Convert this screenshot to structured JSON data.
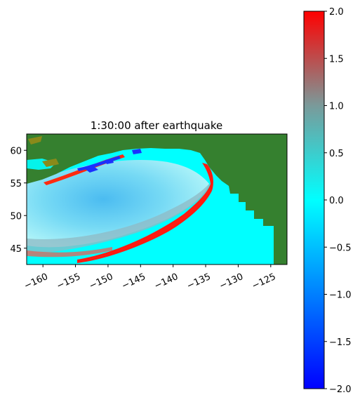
{
  "chart_data": {
    "type": "heatmap",
    "title": "1:30:00 after earthquake",
    "xlabel": "",
    "ylabel": "",
    "x_ticks": [
      "−160",
      "−155",
      "−150",
      "−145",
      "−140",
      "−135",
      "−130",
      "−125"
    ],
    "x_tick_values": [
      -160,
      -155,
      -150,
      -145,
      -140,
      -135,
      -130,
      -125
    ],
    "y_ticks": [
      "45",
      "50",
      "55",
      "60"
    ],
    "y_tick_values": [
      45,
      50,
      55,
      60
    ],
    "xlim": [
      -162.5,
      -122.5
    ],
    "ylim": [
      42.5,
      62.5
    ],
    "grid": false,
    "colorbar": {
      "min": -2.0,
      "max": 2.0,
      "ticks": [
        "2.0",
        "1.5",
        "1.0",
        "0.5",
        "0.0",
        "−0.5",
        "−1.0",
        "−1.5",
        "−2.0"
      ],
      "tick_values": [
        2.0,
        1.5,
        1.0,
        0.5,
        0.0,
        -0.5,
        -1.0,
        -1.5,
        -2.0
      ],
      "colors": [
        "#0000ff",
        "#00ffff",
        "#888888",
        "#ff0000"
      ]
    },
    "land_color": "#35802f",
    "water_color": "#00ffff"
  }
}
